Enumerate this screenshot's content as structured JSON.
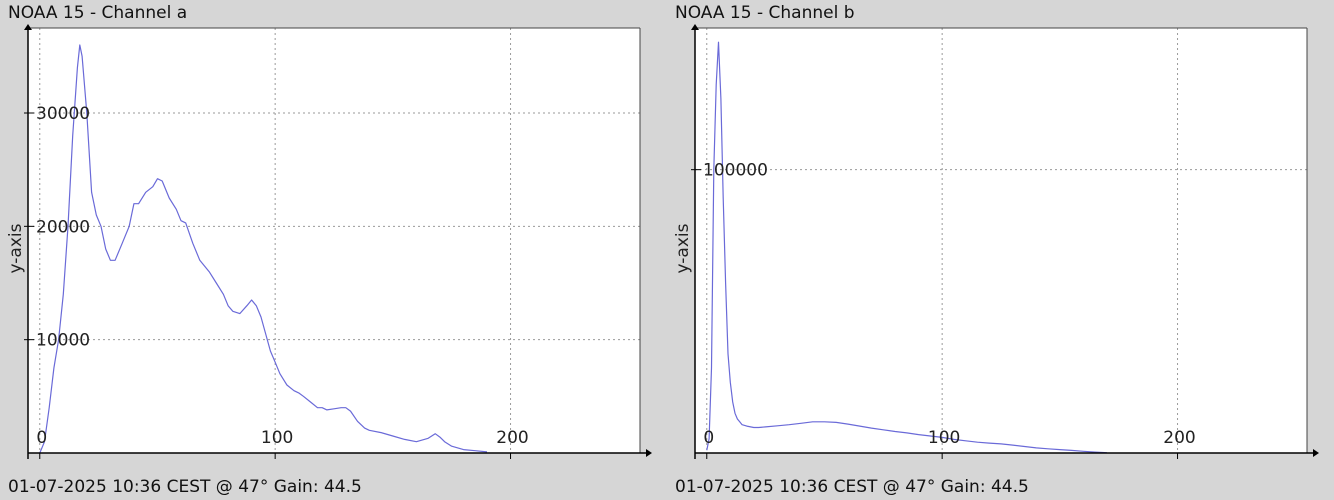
{
  "footer_text": "01-07-2025 10:36 CEST @ 47° Gain: 44.5",
  "colors": {
    "background": "#d6d6d6",
    "plot_background": "#ffffff",
    "series_line": "#6a6ad8",
    "grid": "#9a9a9a",
    "axis": "#000000"
  },
  "chart_data": [
    {
      "type": "line",
      "title": "NOAA 15 - Channel a",
      "xlabel": "",
      "ylabel": "y-axis",
      "xlim": [
        -5,
        255
      ],
      "ylim": [
        0,
        37500
      ],
      "xticks": [
        0,
        100,
        200
      ],
      "yticks": [
        10000,
        20000,
        30000
      ],
      "grid": true,
      "series": [
        {
          "x": [
            0,
            2,
            4,
            6,
            8,
            10,
            12,
            14,
            16,
            17,
            18,
            20,
            22,
            24,
            26,
            28,
            30,
            32,
            35,
            38,
            40,
            42,
            45,
            48,
            50,
            52,
            55,
            58,
            60,
            62,
            65,
            68,
            70,
            72,
            75,
            78,
            80,
            82,
            85,
            88,
            90,
            92,
            94,
            96,
            98,
            100,
            102,
            105,
            108,
            110,
            112,
            115,
            118,
            120,
            122,
            125,
            128,
            130,
            132,
            135,
            138,
            140,
            145,
            150,
            155,
            160,
            165,
            168,
            170,
            172,
            175,
            180,
            185,
            190
          ],
          "y": [
            0,
            1000,
            4000,
            7500,
            10000,
            14000,
            20000,
            28000,
            34000,
            36000,
            35000,
            30000,
            23000,
            21000,
            20000,
            18000,
            17000,
            17000,
            18500,
            20000,
            22000,
            22000,
            23000,
            23500,
            24200,
            24000,
            22500,
            21500,
            20500,
            20300,
            18500,
            17000,
            16500,
            16000,
            15000,
            14000,
            13000,
            12500,
            12300,
            13000,
            13500,
            13000,
            12000,
            10500,
            9000,
            8000,
            7000,
            6000,
            5500,
            5300,
            5000,
            4500,
            4000,
            4000,
            3800,
            3900,
            4000,
            4000,
            3700,
            2800,
            2200,
            2000,
            1800,
            1500,
            1200,
            1000,
            1300,
            1700,
            1400,
            1000,
            600,
            300,
            200,
            100
          ]
        }
      ]
    },
    {
      "type": "line",
      "title": "NOAA 15 - Channel b",
      "xlabel": "",
      "ylabel": "y-axis",
      "xlim": [
        -5,
        255
      ],
      "ylim": [
        0,
        150000
      ],
      "xticks": [
        0,
        100,
        200
      ],
      "yticks": [
        100000
      ],
      "grid": true,
      "series": [
        {
          "x": [
            0,
            1,
            2,
            3,
            4,
            5,
            6,
            7,
            8,
            9,
            10,
            11,
            12,
            13,
            14,
            15,
            17,
            20,
            22,
            25,
            30,
            35,
            40,
            45,
            50,
            55,
            60,
            65,
            70,
            75,
            80,
            85,
            90,
            95,
            100,
            105,
            110,
            115,
            120,
            125,
            130,
            135,
            140,
            145,
            150,
            155,
            160,
            165,
            170
          ],
          "y": [
            1000,
            5000,
            30000,
            100000,
            130000,
            145000,
            125000,
            90000,
            60000,
            35000,
            25000,
            18000,
            14000,
            12000,
            11000,
            10000,
            9500,
            9000,
            9000,
            9200,
            9600,
            10000,
            10500,
            11000,
            11000,
            10800,
            10200,
            9500,
            8800,
            8200,
            7600,
            7100,
            6500,
            6000,
            5500,
            4800,
            4300,
            3800,
            3500,
            3200,
            2800,
            2300,
            1800,
            1500,
            1200,
            900,
            600,
            300,
            100
          ]
        }
      ]
    }
  ]
}
